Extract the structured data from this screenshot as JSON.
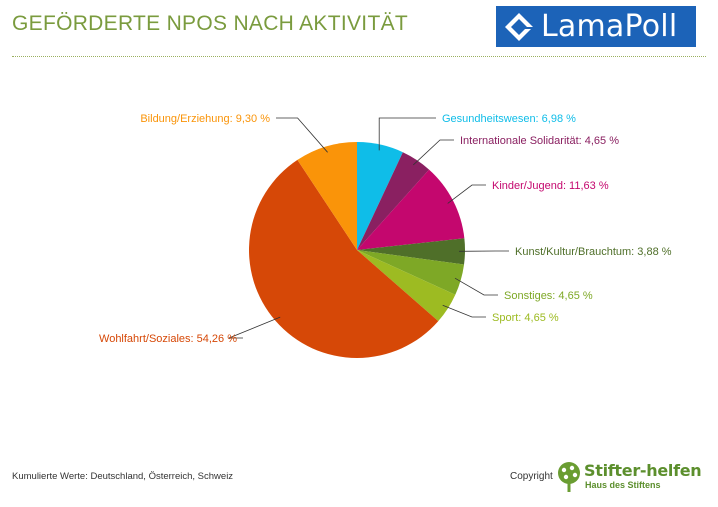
{
  "header": {
    "title": "GEFÖRDERTE NPOS NACH AKTIVITÄT",
    "logo_text": "LamaPoll"
  },
  "footer": {
    "note": "Kumulierte Werte: Deutschland,  Österreich,  Schweiz",
    "copyright": "Copyright",
    "brand_name": "Stifter-helfen",
    "brand_sub": "Haus des Stiftens"
  },
  "colors": {
    "title": "#7a9b3e",
    "logo_bg": "#1c63b8",
    "brand": "#5c8f2d"
  },
  "icons": {
    "logo": "lamapoll-logo-icon",
    "brand": "stifter-helfen-tree-icon"
  },
  "chart_data": {
    "type": "pie",
    "title": "",
    "start_angle_deg": 0,
    "direction": "clockwise",
    "slices": [
      {
        "label": "Gesundheitswesen: 6,98 %",
        "value": 6.98,
        "color": "#0fbde8",
        "label_color": "#0fbde8",
        "side": "right"
      },
      {
        "label": "Internationale Solidarität: 4,65 %",
        "value": 4.65,
        "color": "#8a2061",
        "label_color": "#8a2061",
        "side": "right"
      },
      {
        "label": "Kinder/Jugend: 11,63 %",
        "value": 11.63,
        "color": "#c4076e",
        "label_color": "#c4076e",
        "side": "right"
      },
      {
        "label": "Kunst/Kultur/Brauchtum: 3,88 %",
        "value": 3.88,
        "color": "#4f6f29",
        "label_color": "#4f6f29",
        "side": "right"
      },
      {
        "label": "Sonstiges: 4,65 %",
        "value": 4.65,
        "color": "#7ea826",
        "label_color": "#7ea826",
        "side": "right"
      },
      {
        "label": "Sport: 4,65 %",
        "value": 4.65,
        "color": "#9dbb22",
        "label_color": "#9dbb22",
        "side": "right"
      },
      {
        "label": "Wohlfahrt/Soziales: 54,26 %",
        "value": 54.26,
        "color": "#d64807",
        "label_color": "#d64807",
        "side": "left"
      },
      {
        "label": "Bildung/Erziehung: 9,30 %",
        "value": 9.3,
        "color": "#fa9409",
        "label_color": "#fa9409",
        "side": "left"
      }
    ]
  }
}
